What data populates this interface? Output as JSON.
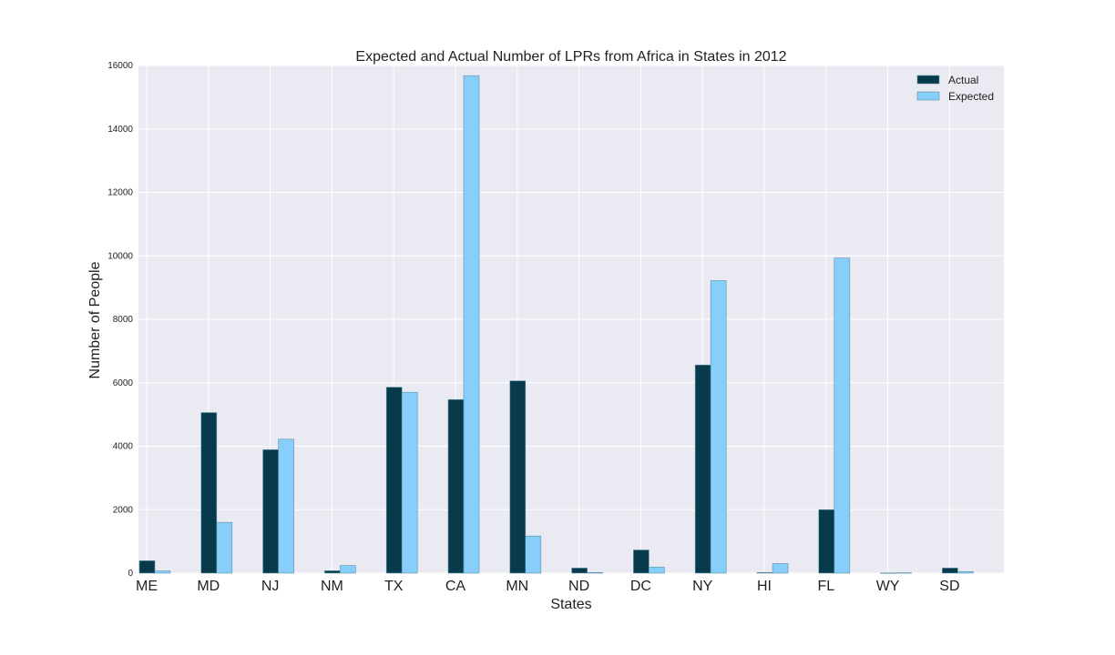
{
  "chart_data": {
    "type": "bar",
    "title": "Expected and Actual Number of LPRs from Africa in States in 2012",
    "xlabel": "States",
    "ylabel": "Number of People",
    "ylim": [
      0,
      16000
    ],
    "yticks": [
      0,
      2000,
      4000,
      6000,
      8000,
      10000,
      12000,
      14000,
      16000
    ],
    "grid": true,
    "legend_position": "top-right",
    "categories": [
      "ME",
      "MD",
      "NJ",
      "NM",
      "TX",
      "CA",
      "MN",
      "ND",
      "DC",
      "NY",
      "HI",
      "FL",
      "WY",
      "SD"
    ],
    "series": [
      {
        "name": "Actual",
        "color": "#073b4c",
        "values": [
          390,
          5060,
          3890,
          75,
          5860,
          5470,
          6060,
          160,
          730,
          6560,
          20,
          2000,
          5,
          160
        ]
      },
      {
        "name": "Expected",
        "color": "#87cefa",
        "values": [
          70,
          1600,
          4220,
          240,
          5700,
          15680,
          1170,
          20,
          190,
          9220,
          300,
          9930,
          10,
          50
        ]
      }
    ]
  },
  "colors": {
    "plot_background": "#eaeaf2",
    "grid": "#ffffff",
    "bar_edge": "#5f8fa8"
  }
}
